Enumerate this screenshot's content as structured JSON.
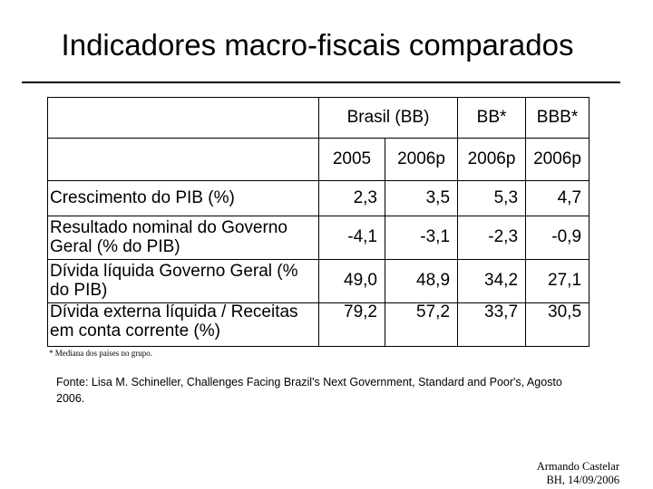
{
  "title": "Indicadores macro-fiscais comparados",
  "table": {
    "header_groups": [
      "Brasil (BB)",
      "BB*",
      "BBB*"
    ],
    "years": [
      "2005",
      "2006p",
      "2006p",
      "2006p"
    ],
    "rows": [
      {
        "label": "Crescimento do PIB (%)",
        "values": [
          "2,3",
          "3,5",
          "5,3",
          "4,7"
        ]
      },
      {
        "label": "Resultado nominal do Governo Geral (% do PIB)",
        "values": [
          "-4,1",
          "-3,1",
          "-2,3",
          "-0,9"
        ]
      },
      {
        "label": "Dívida líquida Governo Geral (% do PIB)",
        "values": [
          "49,0",
          "48,9",
          "34,2",
          "27,1"
        ]
      },
      {
        "label": "Dívida externa líquida / Receitas em conta corrente (%)",
        "values": [
          "79,2",
          "57,2",
          "33,7",
          "30,5"
        ]
      }
    ]
  },
  "footnote": "* Mediana dos países no grupo.",
  "source": "Fonte: Lisa M. Schineller, Challenges Facing Brazil's Next Government, Standard and Poor's, Agosto 2006.",
  "author": {
    "name": "Armando Castelar",
    "location_date": "BH, 14/09/2006"
  }
}
